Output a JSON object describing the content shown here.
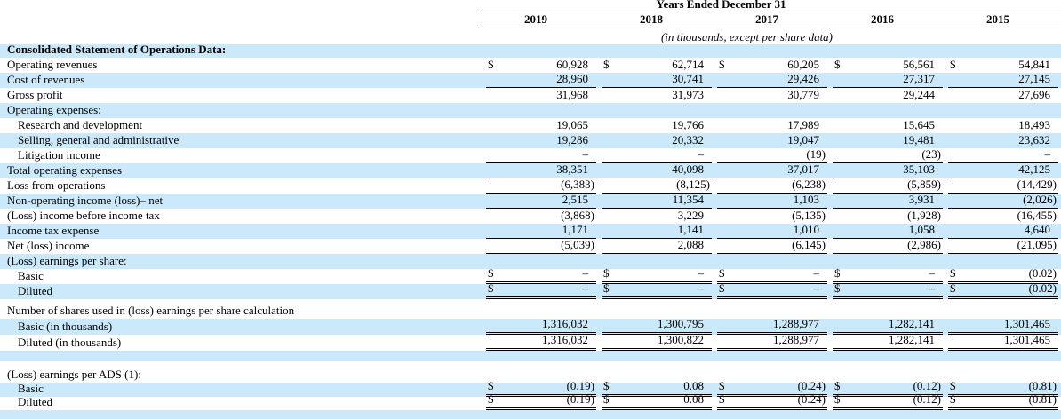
{
  "header": {
    "title": "Years Ended December 31",
    "years": [
      "2019",
      "2018",
      "2017",
      "2016",
      "2015"
    ],
    "subtitle": "(in thousands, except per share data)"
  },
  "colors": {
    "row_shade": "#cbe9fa",
    "text": "#000000",
    "rule": "#000000"
  },
  "table": {
    "currency_symbol": "$",
    "rows": [
      {
        "label": "Consolidated Statement of Operations Data:",
        "bold": true,
        "shade": true,
        "values": []
      },
      {
        "label": "Operating revenues",
        "shade": false,
        "dollar": true,
        "values": [
          "60,928",
          "62,714",
          "60,205",
          "56,561",
          "54,841"
        ]
      },
      {
        "label": "Cost of revenues",
        "shade": true,
        "underline": "single",
        "values": [
          "28,960",
          "30,741",
          "29,426",
          "27,317",
          "27,145"
        ]
      },
      {
        "label": "Gross profit",
        "shade": false,
        "values": [
          "31,968",
          "31,973",
          "30,779",
          "29,244",
          "27,696"
        ]
      },
      {
        "label": "Operating expenses:",
        "shade": true,
        "values": []
      },
      {
        "label": "Research and development",
        "indent": 1,
        "shade": false,
        "values": [
          "19,065",
          "19,766",
          "17,989",
          "15,645",
          "18,493"
        ]
      },
      {
        "label": "Selling, general and administrative",
        "indent": 1,
        "shade": true,
        "values": [
          "19,286",
          "20,332",
          "19,047",
          "19,481",
          "23,632"
        ]
      },
      {
        "label": "Litigation income",
        "indent": 1,
        "shade": false,
        "underline": "single",
        "values": [
          "–",
          "–",
          "(19)",
          "(23)",
          "–"
        ]
      },
      {
        "label": "Total operating expenses",
        "shade": true,
        "underline": "single",
        "values": [
          "38,351",
          "40,098",
          "37,017",
          "35,103",
          "42,125"
        ]
      },
      {
        "label": "Loss from operations",
        "shade": false,
        "underline": "single",
        "values": [
          "(6,383)",
          "(8,125)",
          "(6,238)",
          "(5,859)",
          "(14,429)"
        ]
      },
      {
        "label": "Non-operating income (loss)– net",
        "shade": true,
        "underline": "single",
        "values": [
          "2,515",
          "11,354",
          "1,103",
          "3,931",
          "(2,026)"
        ]
      },
      {
        "label": "(Loss) income before income tax",
        "shade": false,
        "values": [
          "(3,868)",
          "3,229",
          "(5,135)",
          "(1,928)",
          "(16,455)"
        ]
      },
      {
        "label": "Income tax expense",
        "shade": true,
        "underline": "single",
        "values": [
          "1,171",
          "1,141",
          "1,010",
          "1,058",
          "4,640"
        ]
      },
      {
        "label": "Net (loss) income",
        "shade": false,
        "underline": "single",
        "values": [
          "(5,039)",
          "2,088",
          "(6,145)",
          "(2,986)",
          "(21,095)"
        ]
      },
      {
        "label": "(Loss) earnings  per share:",
        "shade": true,
        "values": []
      },
      {
        "label": "Basic",
        "indent": 1,
        "shade": false,
        "dollar": true,
        "underline": "double",
        "values": [
          "–",
          "–",
          "–",
          "–",
          "(0.02)"
        ]
      },
      {
        "label": "Diluted",
        "indent": 1,
        "shade": true,
        "dollar": true,
        "underline": "double",
        "values": [
          "–",
          "–",
          "–",
          "–",
          "(0.02)"
        ]
      },
      {
        "label": "Number of shares used in (loss) earnings per share calculation",
        "shade": false,
        "values": []
      },
      {
        "label": "Basic (in thousands)",
        "indent": 1,
        "shade": true,
        "underline": "double",
        "values": [
          "1,316,032",
          "1,300,795",
          "1,288,977",
          "1,282,141",
          "1,301,465"
        ]
      },
      {
        "label": "Diluted (in thousands)",
        "indent": 1,
        "shade": false,
        "underline": "double",
        "values": [
          "1,316,032",
          "1,300,822",
          "1,288,977",
          "1,282,141",
          "1,301,465"
        ]
      },
      {
        "label": "",
        "shade": true,
        "spacer": true,
        "values": []
      },
      {
        "label": "",
        "shade": false,
        "spacer": true,
        "values": []
      },
      {
        "label": "(Loss) earnings per ADS (1):",
        "shade": false,
        "values": []
      },
      {
        "label": "Basic",
        "indent": 1,
        "shade": true,
        "dollar": true,
        "underline": "double",
        "values": [
          "(0.19)",
          "0.08",
          "(0.24)",
          "(0.12)",
          "(0.81)"
        ]
      },
      {
        "label": "Diluted",
        "indent": 1,
        "shade": false,
        "dollar": true,
        "underline": "double",
        "values": [
          "(0.19)",
          "0.08",
          "(0.24)",
          "(0.12)",
          "(0.81)"
        ]
      },
      {
        "label": "",
        "shade": true,
        "spacer": true,
        "values": []
      }
    ]
  }
}
